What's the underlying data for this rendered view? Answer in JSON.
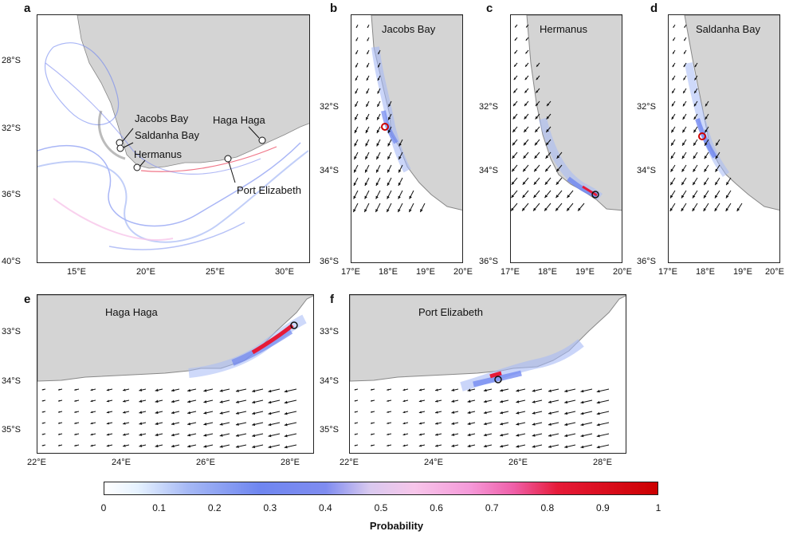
{
  "panels": {
    "a": {
      "letter": "a",
      "lat_ticks": [
        "28°S",
        "32°S",
        "36°S",
        "40°S"
      ],
      "lon_ticks": [
        "15°E",
        "20°E",
        "25°E",
        "30°E"
      ],
      "sites": [
        "Jacobs Bay",
        "Saldanha Bay",
        "Hermanus",
        "Haga Haga",
        "Port Elizabeth"
      ]
    },
    "b": {
      "letter": "b",
      "title": "Jacobs Bay",
      "lat_ticks": [
        "32°S",
        "34°S",
        "36°S"
      ],
      "lon_ticks": [
        "17°E",
        "18°E",
        "19°E",
        "20°E"
      ]
    },
    "c": {
      "letter": "c",
      "title": "Hermanus",
      "lat_ticks": [
        "32°S",
        "34°S",
        "36°S"
      ],
      "lon_ticks": [
        "17°E",
        "18°E",
        "19°E",
        "20°E"
      ]
    },
    "d": {
      "letter": "d",
      "title": "Saldanha Bay",
      "lat_ticks": [
        "32°S",
        "34°S",
        "36°S"
      ],
      "lon_ticks": [
        "17°E",
        "18°E",
        "19°E",
        "20°E"
      ]
    },
    "e": {
      "letter": "e",
      "title": "Haga Haga",
      "lat_ticks": [
        "33°S",
        "34°S",
        "35°S"
      ],
      "lon_ticks": [
        "22°E",
        "24°E",
        "26°E",
        "28°E"
      ]
    },
    "f": {
      "letter": "f",
      "title": "Port Elizabeth",
      "lat_ticks": [
        "33°S",
        "34°S",
        "35°S"
      ],
      "lon_ticks": [
        "22°E",
        "24°E",
        "26°E",
        "28°E"
      ]
    }
  },
  "colorbar": {
    "title": "Probability",
    "ticks": [
      "0",
      "0.1",
      "0.2",
      "0.3",
      "0.4",
      "0.5",
      "0.6",
      "0.7",
      "0.8",
      "0.9",
      "1"
    ],
    "colors": [
      "#ffffff",
      "#6f86f0",
      "#f59ad9",
      "#e61a38",
      "#cc0000"
    ]
  },
  "land_color": "#d4d4d4",
  "arrow_color": "#111111"
}
